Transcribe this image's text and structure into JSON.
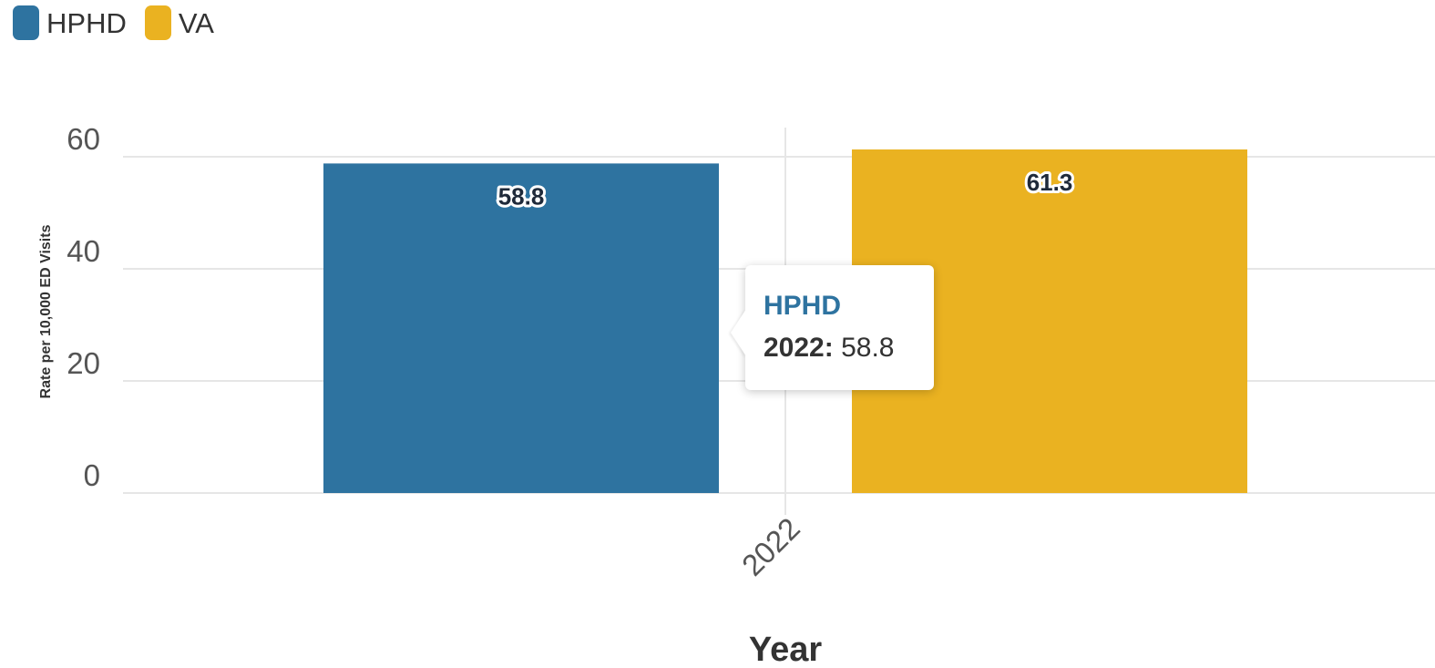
{
  "legend": {
    "items": [
      {
        "label": "HPHD",
        "color": "#2e73a0"
      },
      {
        "label": "VA",
        "color": "#eab221"
      }
    ]
  },
  "tooltip": {
    "series": "HPHD",
    "category": "2022",
    "separator": ":",
    "value": "58.8",
    "series_color": "#2e73a0"
  },
  "chart_data": {
    "type": "bar",
    "categories": [
      "2022"
    ],
    "series": [
      {
        "name": "HPHD",
        "values": [
          58.8
        ],
        "color": "#2e73a0"
      },
      {
        "name": "VA",
        "values": [
          61.3
        ],
        "color": "#eab221"
      }
    ],
    "title": "",
    "xlabel": "Year",
    "ylabel": "Rate per 10,000 ED Visits",
    "ylim": [
      0,
      60
    ],
    "yticks": [
      0,
      20,
      40,
      60
    ],
    "grid": true,
    "legend_position": "top-left",
    "data_labels": [
      "58.8",
      "61.3"
    ]
  }
}
